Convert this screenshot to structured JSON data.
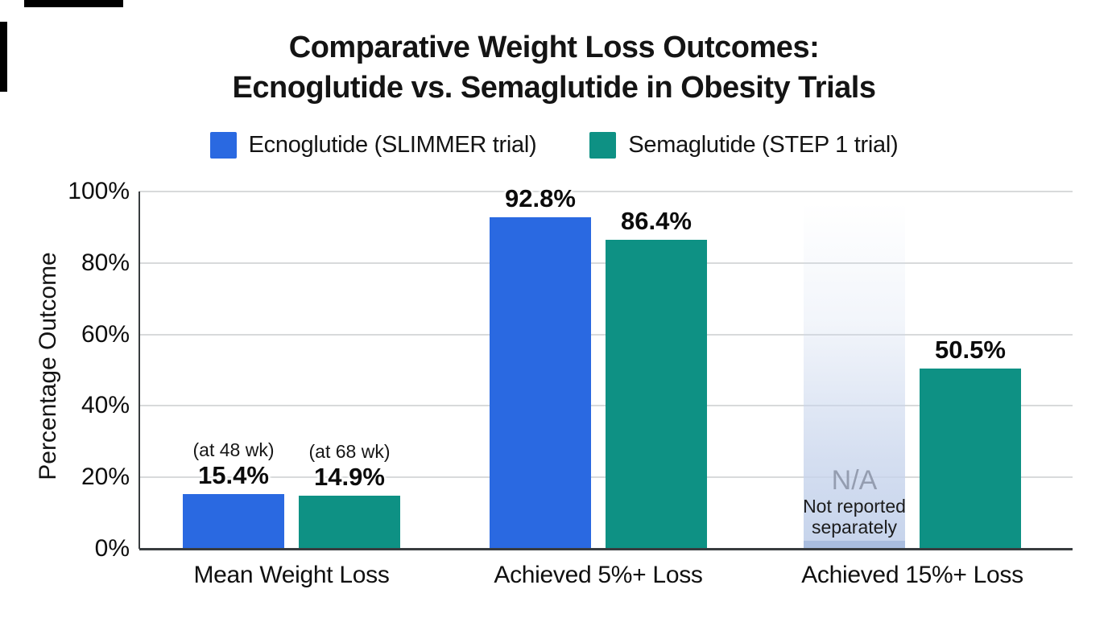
{
  "title": {
    "line1": "Comparative Weight Loss Outcomes:",
    "line2": "Ecnoglutide vs. Semaglutide in Obesity Trials"
  },
  "colors": {
    "ecnoglutide_blue": "#2a69e1",
    "semaglutide_teal": "#0e9184",
    "gridline": "#d8dadb",
    "axis": "#383c3f",
    "na_strip": "#a9bddf",
    "na_text": "#949db0"
  },
  "chart_data": {
    "type": "bar",
    "title": "Comparative Weight Loss Outcomes: Ecnoglutide vs. Semaglutide in Obesity Trials",
    "title_lines": [
      "Comparative Weight Loss Outcomes:",
      "Ecnoglutide vs. Semaglutide in Obesity Trials"
    ],
    "ylabel": "Percentage Outcome",
    "xlabel": "",
    "ylim": [
      0,
      100
    ],
    "yticks": [
      0,
      20,
      40,
      60,
      80,
      100
    ],
    "ytick_labels": [
      "0%",
      "20%",
      "40%",
      "60%",
      "80%",
      "100%"
    ],
    "grid": true,
    "legend_position": "top",
    "categories": [
      "Mean Weight Loss",
      "Achieved 5%+ Loss",
      "Achieved 15%+ Loss"
    ],
    "series": [
      {
        "name": "Ecnoglutide (SLIMMER trial)",
        "color": "#2a69e1",
        "values": [
          15.4,
          92.8,
          null
        ],
        "value_labels": [
          "15.4%",
          "92.8%",
          null
        ],
        "annotations": [
          "(at 48 wk)",
          null,
          null
        ]
      },
      {
        "name": "Semaglutide (STEP 1 trial)",
        "color": "#0e9184",
        "values": [
          14.9,
          86.4,
          50.5
        ],
        "value_labels": [
          "14.9%",
          "86.4%",
          "50.5%"
        ],
        "annotations": [
          "(at 68 wk)",
          null,
          null
        ]
      }
    ],
    "na_annotation": {
      "label": "N/A",
      "note": "Not reported\nseparately",
      "category": "Achieved 15%+ Loss",
      "series": "Ecnoglutide (SLIMMER trial)"
    }
  }
}
